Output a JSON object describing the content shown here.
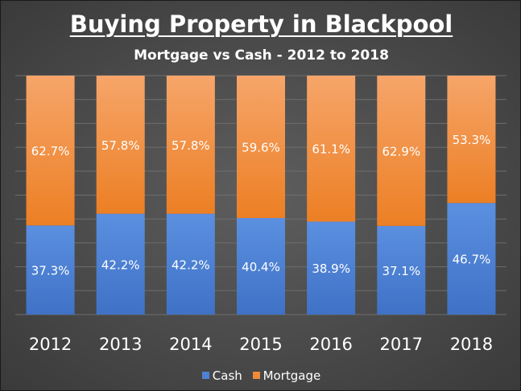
{
  "chart_data": {
    "type": "bar",
    "stacked": true,
    "percent": true,
    "title": "Buying Property in Blackpool",
    "subtitle": "Mortgage vs Cash - 2012 to 2018",
    "categories": [
      "2012",
      "2013",
      "2014",
      "2015",
      "2016",
      "2017",
      "2018"
    ],
    "series": [
      {
        "name": "Cash",
        "color": "#4d82d4",
        "values": [
          37.3,
          42.2,
          42.2,
          40.4,
          38.9,
          37.1,
          46.7
        ],
        "labels": [
          "37.3%",
          "42.2%",
          "42.2%",
          "40.4%",
          "38.9%",
          "37.1%",
          "46.7%"
        ]
      },
      {
        "name": "Mortgage",
        "color": "#ee8a3a",
        "values": [
          62.7,
          57.8,
          57.8,
          59.6,
          61.1,
          62.9,
          53.3
        ],
        "labels": [
          "62.7%",
          "57.8%",
          "57.8%",
          "59.6%",
          "61.1%",
          "62.9%",
          "53.3%"
        ]
      }
    ],
    "ylim": [
      0,
      100
    ],
    "grid": true,
    "legend_position": "bottom"
  }
}
